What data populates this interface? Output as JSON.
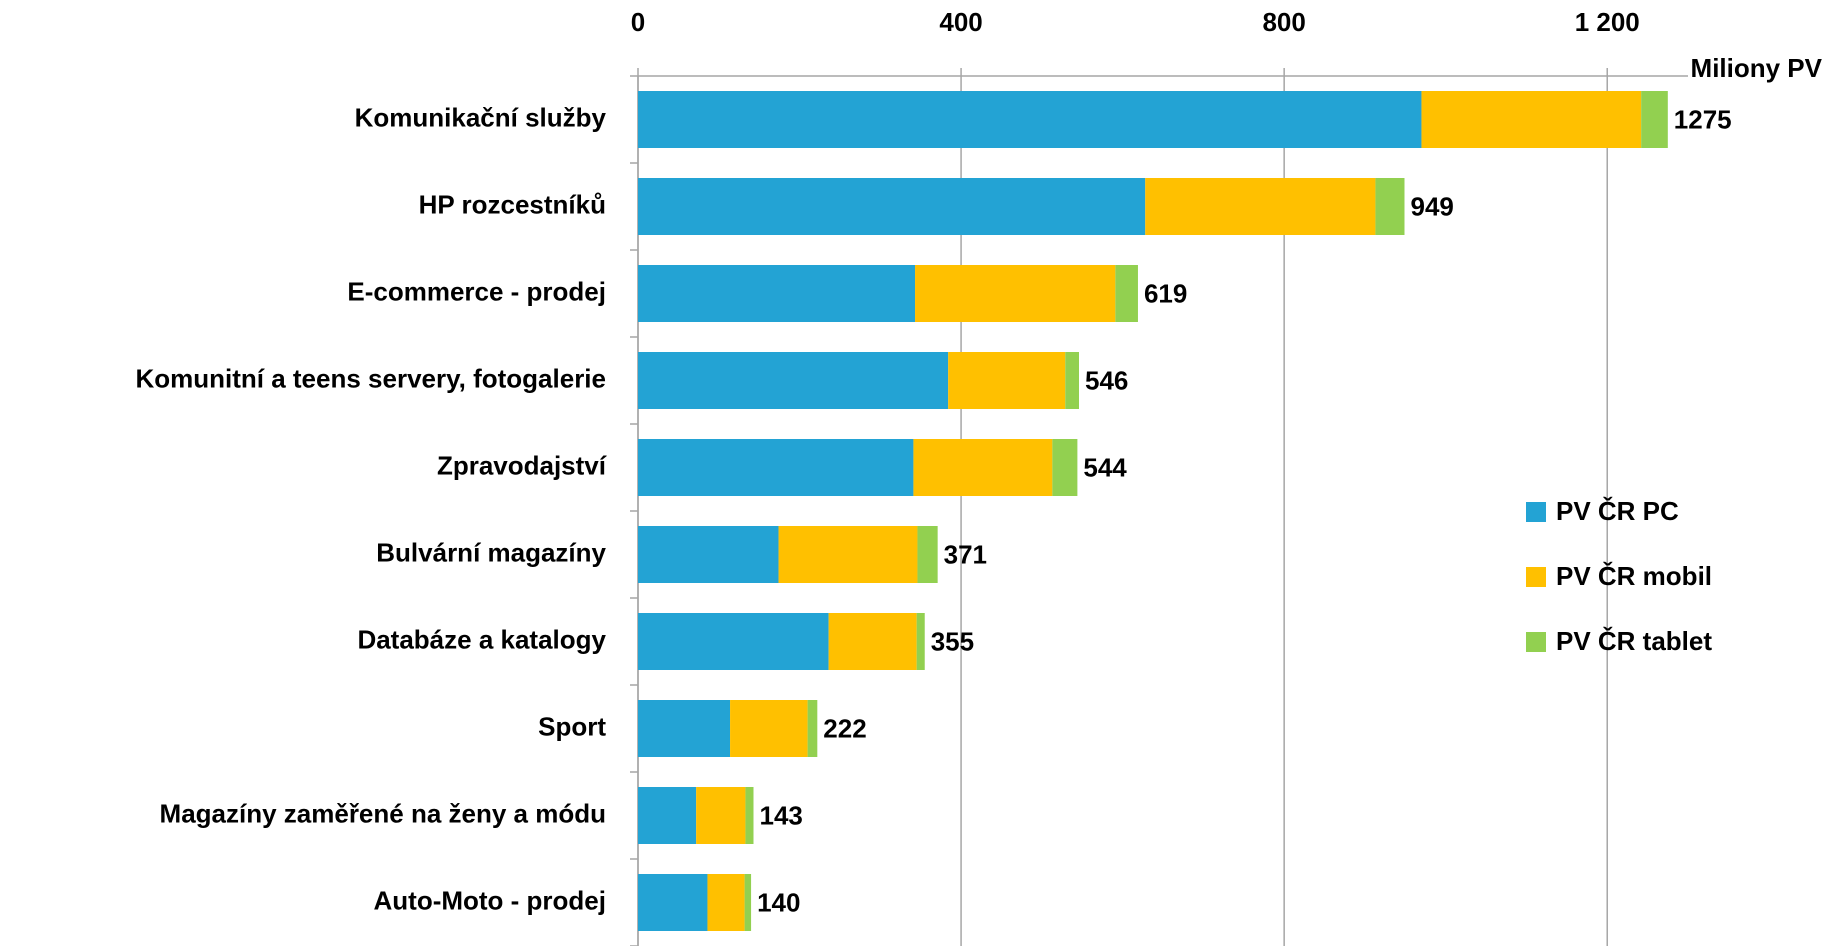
{
  "chart_data": {
    "type": "bar",
    "orientation": "horizontal",
    "stacked": true,
    "x_label": "Miliony PV",
    "categories": [
      "Komunikační služby",
      "HP rozcestníků",
      "E-commerce - prodej",
      "Komunitní a teens servery, fotogalerie",
      "Zpravodajství",
      "Bulvární magazíny",
      "Databáze a katalogy",
      "Sport",
      "Magazíny zaměřené na ženy a módu",
      "Auto-Moto - prodej"
    ],
    "series": [
      {
        "name": "PV ČR PC",
        "color": "#23a3d4",
        "values": [
          970,
          628,
          343,
          384,
          341,
          174,
          236,
          114,
          72,
          86
        ]
      },
      {
        "name": "PV ČR mobil",
        "color": "#ffc000",
        "values": [
          272,
          285,
          248,
          145,
          172,
          172,
          109,
          96,
          61,
          46
        ]
      },
      {
        "name": "PV ČR tablet",
        "color": "#92d050",
        "values": [
          33,
          36,
          28,
          17,
          31,
          25,
          10,
          12,
          10,
          8
        ]
      }
    ],
    "totals": [
      1275,
      949,
      619,
      546,
      544,
      371,
      355,
      222,
      143,
      140
    ],
    "xlim": [
      0,
      1300
    ],
    "xticks": [
      0,
      400,
      800,
      {
        "value": 1200,
        "label": "1 200"
      }
    ],
    "grid": true,
    "legend": "right"
  }
}
